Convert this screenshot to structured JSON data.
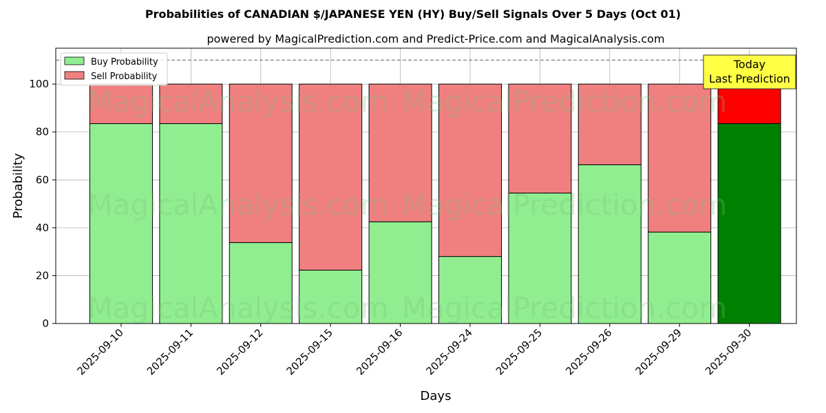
{
  "title": "Probabilities of CANADIAN $/JAPANESE YEN (HY) Buy/Sell Signals Over 5 Days (Oct 01)",
  "subtitle": "powered by MagicalPrediction.com and Predict-Price.com and MagicalAnalysis.com",
  "watermarks": [
    "MagicalAnalysis.com",
    "MagicalPrediction.com"
  ],
  "legend": {
    "buy": "Buy Probability",
    "sell": "Sell Probability"
  },
  "annotation": {
    "line1": "Today",
    "line2": "Last Prediction"
  },
  "colors": {
    "buy": "#90ee90",
    "sell": "#f08080",
    "buy_today": "#008000",
    "sell_today": "#ff0000",
    "annotation_bg": "#ffff44",
    "grid": "#b0b0b0"
  },
  "chart_data": {
    "type": "bar",
    "stacked": true,
    "xlabel": "Days",
    "ylabel": "Probability",
    "ylim": [
      0,
      115
    ],
    "yticks": [
      0,
      20,
      40,
      60,
      80,
      100
    ],
    "reference_line": 110,
    "grid": true,
    "legend_position": "top-left",
    "categories": [
      "2025-09-10",
      "2025-09-11",
      "2025-09-12",
      "2025-09-15",
      "2025-09-16",
      "2025-09-24",
      "2025-09-25",
      "2025-09-26",
      "2025-09-29",
      "2025-09-30"
    ],
    "series": [
      {
        "name": "Buy Probability",
        "values": [
          83.5,
          83.5,
          33.8,
          22.3,
          42.5,
          28.0,
          54.5,
          66.3,
          38.2,
          83.5
        ]
      },
      {
        "name": "Sell Probability",
        "values": [
          16.5,
          16.5,
          66.2,
          77.7,
          57.5,
          72.0,
          45.5,
          33.7,
          61.8,
          16.5
        ]
      }
    ],
    "highlight_last": true
  }
}
